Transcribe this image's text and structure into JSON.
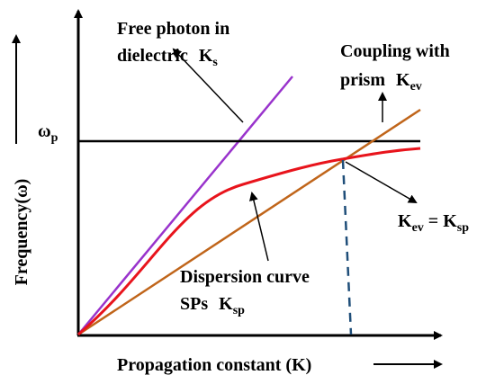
{
  "axes": {
    "y_label": "Frequency(ω)",
    "x_label": "Propagation constant (K)"
  },
  "labels": {
    "omega_p": {
      "symbol": "ω",
      "sub": "p"
    },
    "free_photon": {
      "lines": [
        "Free photon in",
        "dielectric"
      ],
      "symbol": "K",
      "sub": "s"
    },
    "coupling": {
      "lines": [
        "Coupling with",
        "prism"
      ],
      "symbol": "K",
      "sub": "ev"
    },
    "dispersion": {
      "lines": [
        "Dispersion curve",
        "SPs"
      ],
      "symbol": "K",
      "sub": "sp"
    },
    "match": {
      "left": "K",
      "left_sub": "ev",
      "eq": "=",
      "right": "K",
      "right_sub": "sp"
    }
  }
}
